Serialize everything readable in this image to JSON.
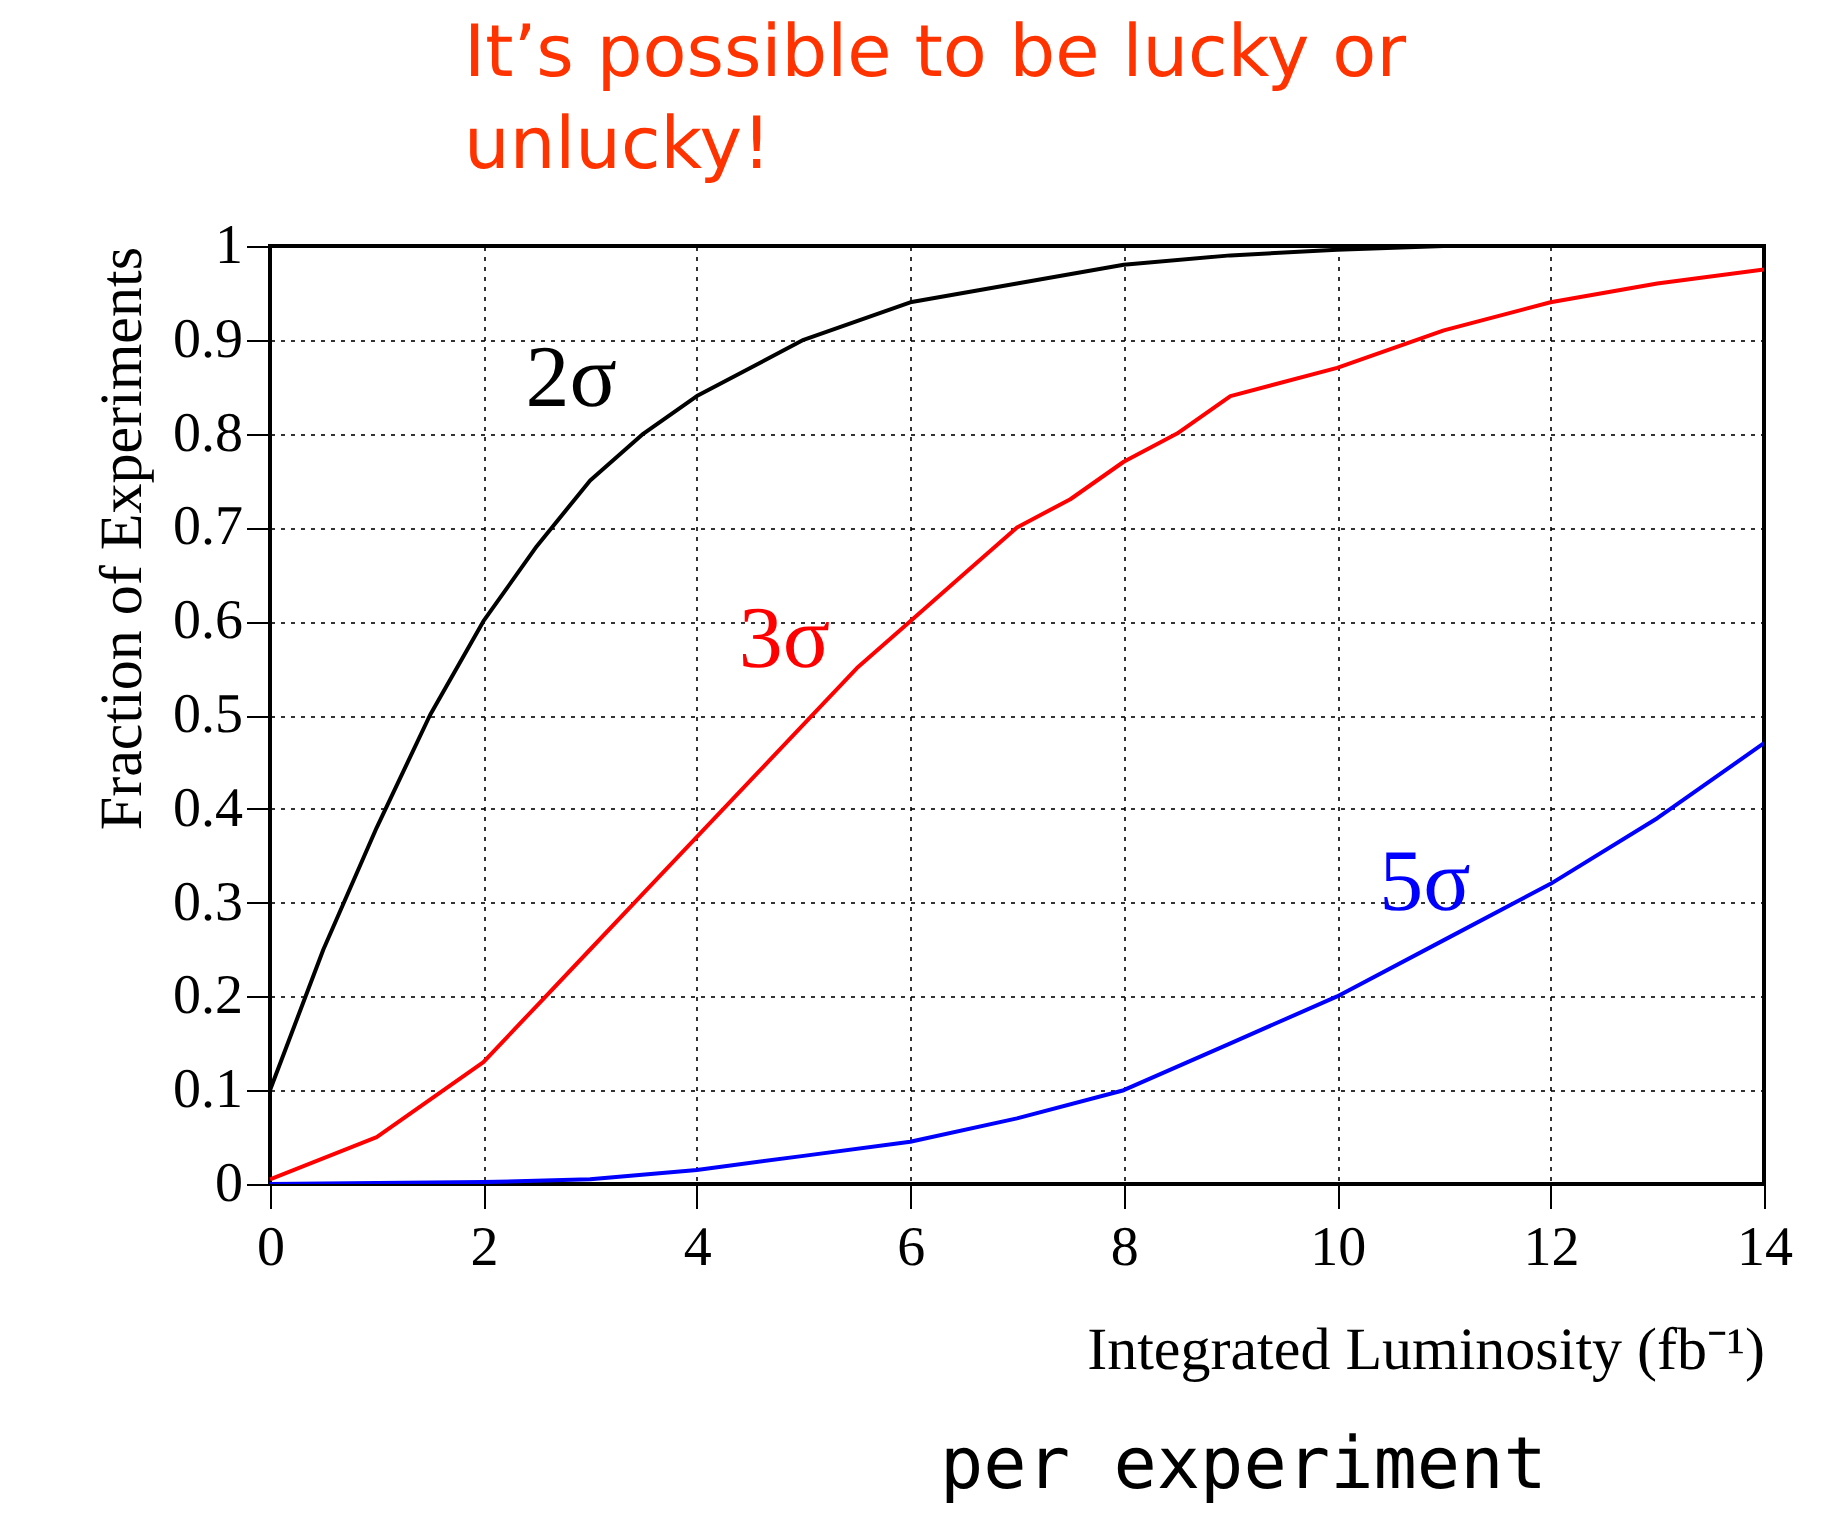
{
  "chart_data": {
    "type": "line",
    "title": "It’s possible to be lucky or unlucky!",
    "xlabel": "Integrated Luminosity (fb⁻¹)",
    "ylabel": "Fraction of Experiments",
    "annotations": [
      "per experiment"
    ],
    "xlim": [
      0,
      14
    ],
    "ylim": [
      0,
      1
    ],
    "xticks": [
      0,
      2,
      4,
      6,
      8,
      10,
      12,
      14
    ],
    "yticks": [
      {
        "value": 0,
        "label": "0"
      },
      0.1,
      0.2,
      0.3,
      0.4,
      0.5,
      0.6,
      0.7,
      0.8,
      0.9,
      {
        "value": 1,
        "label": "1"
      }
    ],
    "grid": true,
    "line_style": "solid",
    "legend": false,
    "series": [
      {
        "name": "2σ",
        "color": "#000000",
        "x": [
          0,
          0.5,
          1,
          1.5,
          2,
          2.5,
          3,
          3.5,
          4,
          4.5,
          5,
          5.5,
          6,
          7,
          8,
          9,
          10,
          11,
          12,
          13,
          14
        ],
        "values": [
          0.1,
          0.25,
          0.38,
          0.5,
          0.6,
          0.68,
          0.75,
          0.8,
          0.84,
          0.87,
          0.9,
          0.92,
          0.94,
          0.96,
          0.98,
          0.99,
          0.996,
          1,
          1,
          1,
          1
        ]
      },
      {
        "name": "3σ",
        "color": "#ff0000",
        "x": [
          0,
          1,
          1.5,
          2,
          2.5,
          3,
          3.5,
          4,
          4.5,
          5,
          5.5,
          6,
          6.5,
          7,
          7.5,
          8,
          8.5,
          9,
          10,
          11,
          12,
          13,
          14
        ],
        "values": [
          0.005,
          0.05,
          0.09,
          0.13,
          0.19,
          0.25,
          0.31,
          0.37,
          0.43,
          0.49,
          0.55,
          0.6,
          0.65,
          0.7,
          0.73,
          0.77,
          0.8,
          0.84,
          0.87,
          0.91,
          0.94,
          0.96,
          0.975
        ]
      },
      {
        "name": "5σ",
        "color": "#0000ff",
        "x": [
          0,
          2,
          3,
          4,
          5,
          6,
          7,
          8,
          9,
          10,
          11,
          12,
          13,
          14
        ],
        "values": [
          0,
          0.002,
          0.005,
          0.015,
          0.03,
          0.045,
          0.07,
          0.1,
          0.15,
          0.2,
          0.26,
          0.32,
          0.39,
          0.47
        ]
      }
    ]
  }
}
